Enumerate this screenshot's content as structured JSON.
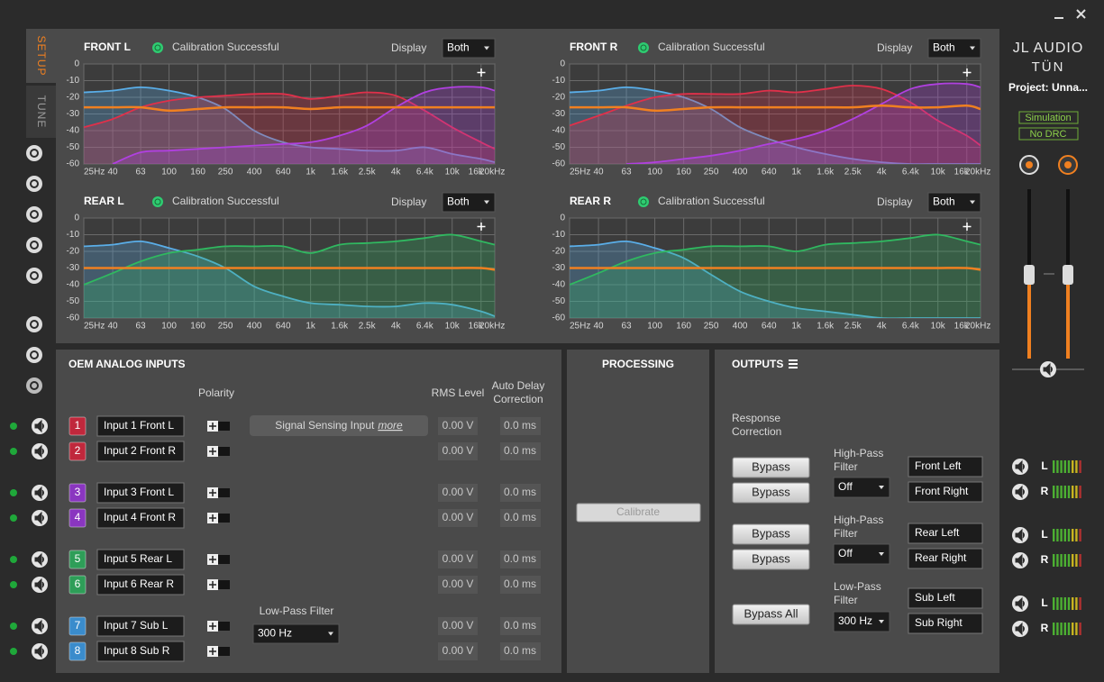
{
  "sidebar": {
    "tabs": [
      "SETUP",
      "TUNE"
    ]
  },
  "brand": {
    "logo": "JL AUDIO",
    "product": "TÜN",
    "project": "Project: Unna...",
    "modes": [
      "Simulation",
      "No DRC"
    ]
  },
  "graphs": [
    {
      "title": "FRONT L",
      "status": "Calibration Successful",
      "display_label": "Display",
      "display_value": "Both",
      "xlim": [
        25,
        20000
      ],
      "ylim": [
        -60,
        0
      ],
      "yticks": [
        0,
        -10,
        -20,
        -30,
        -40,
        -50,
        -60
      ],
      "xticks": [
        {
          "value": 25,
          "label": "25Hz"
        },
        40,
        63,
        100,
        160,
        250,
        400,
        640,
        {
          "value": 1000,
          "label": "1k"
        },
        {
          "value": 1600,
          "label": "1.6k"
        },
        {
          "value": 2500,
          "label": "2.5k"
        },
        {
          "value": 4000,
          "label": "4k"
        },
        {
          "value": 6400,
          "label": "6.4k"
        },
        {
          "value": 10000,
          "label": "10k"
        },
        {
          "value": 16000,
          "label": "16k"
        },
        {
          "value": 20000,
          "label": "20kHz"
        }
      ],
      "x": [
        25,
        40,
        63,
        100,
        160,
        250,
        400,
        640,
        1000,
        1600,
        2500,
        4000,
        6400,
        10000,
        16000,
        20000
      ],
      "series": [
        {
          "color": "#5aaee8",
          "area": true,
          "values": [
            -17,
            -16,
            -14,
            -16,
            -20,
            -27,
            -40,
            -47,
            -50,
            -51,
            -52,
            -52,
            -50,
            -54,
            -57,
            -59
          ]
        },
        {
          "color": "#e0304a",
          "area": true,
          "values": [
            -38,
            -33,
            -26,
            -22,
            -20,
            -19,
            -18,
            -18,
            -21,
            -19,
            -17,
            -19,
            -28,
            -38,
            -47,
            -51
          ]
        },
        {
          "color": "#b040e0",
          "area": true,
          "values": [
            null,
            -60,
            -53,
            -52,
            -51,
            -50,
            -49,
            -48,
            -47,
            -43,
            -37,
            -26,
            -17,
            -14,
            -14,
            -16
          ]
        },
        {
          "color": "#f08020",
          "area": false,
          "values": [
            -26,
            -26,
            -26,
            -28,
            -27,
            -26,
            -26,
            -26,
            -27,
            -26,
            -26,
            -26,
            -26,
            -26,
            -26,
            -26
          ]
        }
      ]
    },
    {
      "title": "FRONT R",
      "status": "Calibration Successful",
      "display_label": "Display",
      "display_value": "Both",
      "xlim": [
        25,
        20000
      ],
      "ylim": [
        -60,
        0
      ],
      "yticks": [
        0,
        -10,
        -20,
        -30,
        -40,
        -50,
        -60
      ],
      "xticks": [
        {
          "value": 25,
          "label": "25Hz"
        },
        40,
        63,
        100,
        160,
        250,
        400,
        640,
        {
          "value": 1000,
          "label": "1k"
        },
        {
          "value": 1600,
          "label": "1.6k"
        },
        {
          "value": 2500,
          "label": "2.5k"
        },
        {
          "value": 4000,
          "label": "4k"
        },
        {
          "value": 6400,
          "label": "6.4k"
        },
        {
          "value": 10000,
          "label": "10k"
        },
        {
          "value": 16000,
          "label": "16k"
        },
        {
          "value": 20000,
          "label": "20kHz"
        }
      ],
      "x": [
        25,
        40,
        63,
        100,
        160,
        250,
        400,
        640,
        1000,
        1600,
        2500,
        4000,
        6400,
        10000,
        16000,
        20000
      ],
      "series": [
        {
          "color": "#5aaee8",
          "area": true,
          "values": [
            -17,
            -16,
            -14,
            -16,
            -20,
            -27,
            -38,
            -45,
            -50,
            -54,
            -57,
            -59,
            -60,
            -60,
            -60,
            -60
          ]
        },
        {
          "color": "#e0304a",
          "area": true,
          "values": [
            -37,
            -31,
            -25,
            -20,
            -18,
            -18,
            -18,
            -16,
            -17,
            -15,
            -13,
            -15,
            -23,
            -34,
            -43,
            -49
          ]
        },
        {
          "color": "#b040e0",
          "area": true,
          "values": [
            null,
            null,
            -60,
            -59,
            -57,
            -55,
            -52,
            -48,
            -45,
            -40,
            -33,
            -24,
            -15,
            -12,
            -12,
            -14
          ]
        },
        {
          "color": "#f08020",
          "area": false,
          "values": [
            -26,
            -26,
            -26,
            -28,
            -27,
            -26,
            -26,
            -26,
            -26,
            -26,
            -26,
            -25,
            -26,
            -26,
            -25,
            -27
          ]
        }
      ]
    },
    {
      "title": "REAR L",
      "status": "Calibration Successful",
      "display_label": "Display",
      "display_value": "Both",
      "xlim": [
        25,
        20000
      ],
      "ylim": [
        -60,
        0
      ],
      "yticks": [
        0,
        -10,
        -20,
        -30,
        -40,
        -50,
        -60
      ],
      "xticks": [
        {
          "value": 25,
          "label": "25Hz"
        },
        40,
        63,
        100,
        160,
        250,
        400,
        640,
        {
          "value": 1000,
          "label": "1k"
        },
        {
          "value": 1600,
          "label": "1.6k"
        },
        {
          "value": 2500,
          "label": "2.5k"
        },
        {
          "value": 4000,
          "label": "4k"
        },
        {
          "value": 6400,
          "label": "6.4k"
        },
        {
          "value": 10000,
          "label": "10k"
        },
        {
          "value": 16000,
          "label": "16k"
        },
        {
          "value": 20000,
          "label": "20kHz"
        }
      ],
      "x": [
        25,
        40,
        63,
        100,
        160,
        250,
        400,
        640,
        1000,
        1600,
        2500,
        4000,
        6400,
        10000,
        16000,
        20000
      ],
      "series": [
        {
          "color": "#5aaee8",
          "area": true,
          "values": [
            -17,
            -16,
            -14,
            -18,
            -23,
            -30,
            -41,
            -47,
            -51,
            -52,
            -53,
            -53,
            -51,
            -52,
            -56,
            -59
          ]
        },
        {
          "color": "#30b860",
          "area": true,
          "values": [
            -40,
            -33,
            -26,
            -21,
            -19,
            -17,
            -17,
            -17,
            -21,
            -16,
            -15,
            -14,
            -12,
            -10,
            -14,
            -16
          ]
        },
        {
          "color": "#f08020",
          "area": false,
          "values": [
            -30,
            -30,
            -30,
            -30,
            -30,
            -30,
            -30,
            -30,
            -30,
            -30,
            -30,
            -30,
            -30,
            -30,
            -30,
            -31
          ]
        }
      ]
    },
    {
      "title": "REAR R",
      "status": "Calibration Successful",
      "display_label": "Display",
      "display_value": "Both",
      "xlim": [
        25,
        20000
      ],
      "ylim": [
        -60,
        0
      ],
      "yticks": [
        0,
        -10,
        -20,
        -30,
        -40,
        -50,
        -60
      ],
      "xticks": [
        {
          "value": 25,
          "label": "25Hz"
        },
        40,
        63,
        100,
        160,
        250,
        400,
        640,
        {
          "value": 1000,
          "label": "1k"
        },
        {
          "value": 1600,
          "label": "1.6k"
        },
        {
          "value": 2500,
          "label": "2.5k"
        },
        {
          "value": 4000,
          "label": "4k"
        },
        {
          "value": 6400,
          "label": "6.4k"
        },
        {
          "value": 10000,
          "label": "10k"
        },
        {
          "value": 16000,
          "label": "16k"
        },
        {
          "value": 20000,
          "label": "20kHz"
        }
      ],
      "x": [
        25,
        40,
        63,
        100,
        160,
        250,
        400,
        640,
        1000,
        1600,
        2500,
        4000,
        6400,
        10000,
        16000,
        20000
      ],
      "series": [
        {
          "color": "#5aaee8",
          "area": true,
          "values": [
            -17,
            -16,
            -14,
            -18,
            -24,
            -34,
            -44,
            -50,
            -54,
            -56,
            -58,
            -60,
            -60,
            -60,
            -60,
            -60
          ]
        },
        {
          "color": "#30b860",
          "area": true,
          "values": [
            -40,
            -33,
            -26,
            -21,
            -19,
            -17,
            -17,
            -17,
            -20,
            -16,
            -15,
            -14,
            -12,
            -10,
            -14,
            -16
          ]
        },
        {
          "color": "#f08020",
          "area": false,
          "values": [
            -30,
            -30,
            -30,
            -30,
            -30,
            -30,
            -30,
            -30,
            -30,
            -30,
            -30,
            -30,
            -30,
            -30,
            -30,
            -31
          ]
        }
      ]
    }
  ],
  "inputs": {
    "title": "OEM ANALOG INPUTS",
    "headers": {
      "polarity": "Polarity",
      "rms": "RMS Level",
      "delay": [
        "Auto Delay",
        "Correction"
      ]
    },
    "signal_sensing": {
      "label": "Signal Sensing Input",
      "link": "more"
    },
    "low_pass": {
      "label": "Low-Pass Filter",
      "value": "300 Hz"
    },
    "channels": [
      {
        "number": 1,
        "color": "#c0283c",
        "name": "Input 1 Front L",
        "rms": "0.00 V",
        "delay": "0.0 ms"
      },
      {
        "number": 2,
        "color": "#c0283c",
        "name": "Input 2 Front R",
        "rms": "0.00 V",
        "delay": "0.0 ms"
      },
      {
        "number": 3,
        "color": "#8a36c0",
        "name": "Input 3 Front L",
        "rms": "0.00 V",
        "delay": "0.0 ms"
      },
      {
        "number": 4,
        "color": "#8a36c0",
        "name": "Input 4 Front R",
        "rms": "0.00 V",
        "delay": "0.0 ms"
      },
      {
        "number": 5,
        "color": "#2e9e58",
        "name": "Input 5 Rear L",
        "rms": "0.00 V",
        "delay": "0.0 ms"
      },
      {
        "number": 6,
        "color": "#2e9e58",
        "name": "Input 6 Rear R",
        "rms": "0.00 V",
        "delay": "0.0 ms"
      },
      {
        "number": 7,
        "color": "#3a8ccc",
        "name": "Input 7 Sub L",
        "rms": "0.00 V",
        "delay": "0.0 ms"
      },
      {
        "number": 8,
        "color": "#3a8ccc",
        "name": "Input 8 Sub R",
        "rms": "0.00 V",
        "delay": "0.0 ms"
      }
    ]
  },
  "processing": {
    "title": "PROCESSING",
    "button": "Calibrate"
  },
  "outputs": {
    "title": "OUTPUTS",
    "response_label": [
      "Response",
      "Correction"
    ],
    "groups": [
      {
        "bypass": [
          "Bypass",
          "Bypass"
        ],
        "filter_label": [
          "High-Pass",
          "Filter"
        ],
        "filter_value": "Off",
        "names": [
          "Front Left",
          "Front Right"
        ]
      },
      {
        "bypass": [
          "Bypass",
          "Bypass"
        ],
        "filter_label": [
          "High-Pass",
          "Filter"
        ],
        "filter_value": "Off",
        "names": [
          "Rear Left",
          "Rear Right"
        ]
      },
      {
        "bypass": [],
        "filter_label": [
          "Low-Pass",
          "Filter"
        ],
        "filter_value": "300 Hz",
        "names": [
          "Sub Left",
          "Sub Right"
        ]
      }
    ],
    "bypass_all": "Bypass All",
    "meters": [
      "L",
      "R",
      "L",
      "R",
      "L",
      "R"
    ]
  }
}
